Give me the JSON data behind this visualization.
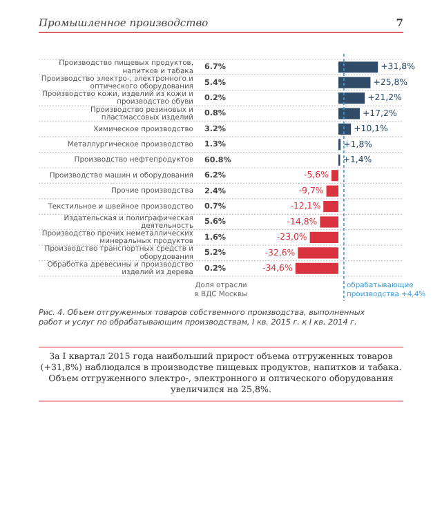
{
  "chart_data": {
    "type": "bar",
    "orientation": "horizontal",
    "title": "Рис. 4. Объем отгруженных товаров собственного производства, выполненных работ и услуг по обрабатывающим производствам, I кв. 2015 г. к I кв. 2014 г.",
    "categories": [
      "Производство пищевых продуктов, напитков и табака",
      "Производство электро-, электронного и оптического оборудования",
      "Производство кожи, изделий из кожи и производство обуви",
      "Производство резиновых и пластмассовых изделий",
      "Химическое производство",
      "Металлургическое производство",
      "Производство нефтепродуктов",
      "Производство машин и оборудования",
      "Прочие производства",
      "Текстильное и швейное производство",
      "Издательская и полиграфическая деятельность",
      "Производство прочих неметаллических минеральных продуктов",
      "Производство транспортных средств и оборудования",
      "Обработка древесины и производство изделий из дерева"
    ],
    "values": [
      31.8,
      25.8,
      21.2,
      17.2,
      10.1,
      1.8,
      1.4,
      -5.6,
      -9.7,
      -12.1,
      -14.8,
      -23.0,
      -32.6,
      -34.6
    ],
    "colors": [
      "#2f4b68",
      "#2f4b68",
      "#2f4b68",
      "#2f4b68",
      "#2f4b68",
      "#2f4b68",
      "#2f4b68",
      "#d9333f",
      "#d9333f",
      "#d9333f",
      "#d9333f",
      "#d9333f",
      "#d9333f",
      "#d9333f"
    ],
    "value_labels": [
      "+31,8%",
      "+25,8%",
      "+21,2%",
      "+17,2%",
      "+10,1%",
      "+1,8%",
      "+1,4%",
      "-5,6%",
      "-9,7%",
      "-12,1%",
      "-14,8%",
      "-23,0%",
      "-32,6%",
      "-34,6%"
    ],
    "ref_lines": [
      {
        "axis": "x",
        "value": 4.4,
        "label": "обрабатывающие производства +4,4%",
        "color": "#3a9ad9",
        "line_style": "dashed"
      }
    ],
    "grid": "y",
    "legend": false,
    "tick_labels": "y",
    "annotations": [
      "Промышленное производство",
      "7",
      "Доля отрасли в ВДС Москвы",
      "За I квартал 2015 года наибольший прирост объема отгруженных товаров (+31,8%) наблюдался в производстве пищевых продуктов, напитков и табака. Объем отгруженного электро-, электронного и оптического оборудования увеличился на 25,8%.",
      "6.7%",
      "5.4%",
      "0.2%",
      "0.8%",
      "3.2%",
      "1.3%",
      "60.8%",
      "6.2%",
      "2.4%",
      "0.7%",
      "5.6%",
      "1.6%",
      "5.2%",
      "0.2%"
    ]
  }
}
